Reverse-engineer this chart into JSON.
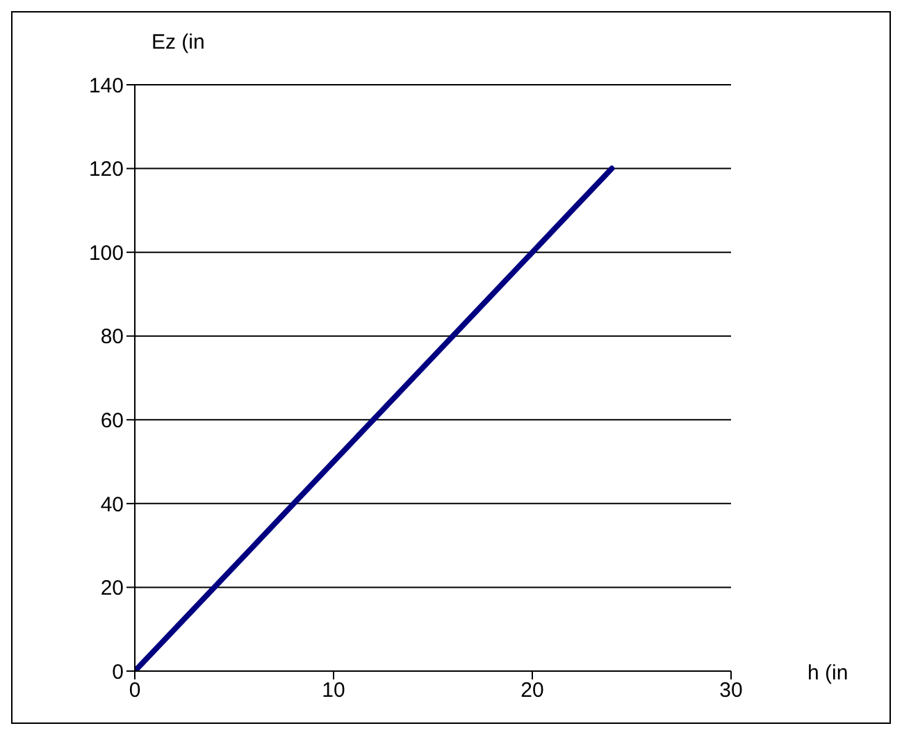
{
  "chart_data": {
    "type": "line",
    "xlabel": "h (in",
    "ylabel": "Ez (in",
    "x": [
      0,
      2,
      4,
      6,
      8,
      10,
      12,
      14,
      16,
      18,
      20,
      22,
      24
    ],
    "series": [
      {
        "color": "#000080",
        "values": [
          0,
          10,
          20,
          30,
          40,
          50,
          60,
          70,
          80,
          90,
          100,
          110,
          120
        ]
      }
    ],
    "xlim": [
      0,
      30
    ],
    "xticks": [
      0,
      10,
      20,
      30
    ],
    "ylim": [
      0,
      140
    ],
    "yticks": [
      0,
      20,
      40,
      60,
      80,
      100,
      120,
      140
    ],
    "grid": "y",
    "legend": false,
    "marker": "none",
    "line_style": "solid"
  }
}
